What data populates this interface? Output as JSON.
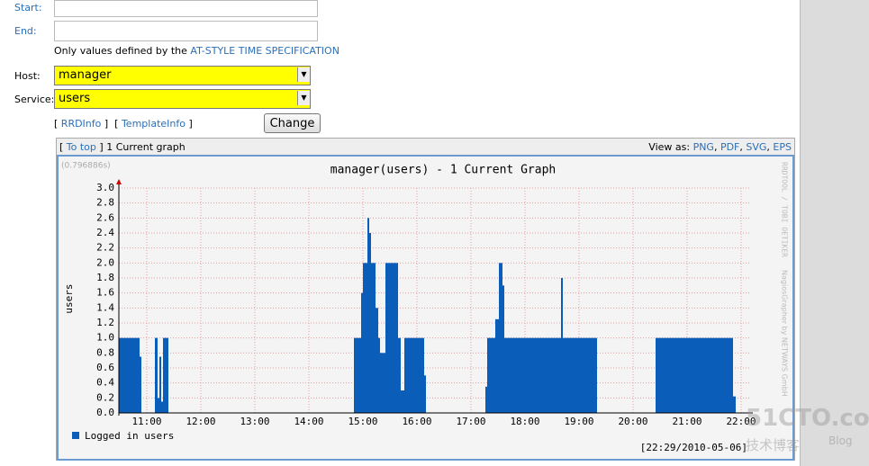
{
  "form": {
    "start_label": "Start:",
    "end_label": "End:",
    "hint": "Only values defined by the",
    "hint_link": "AT-STYLE TIME SPECIFICATION",
    "host_label": "Host:",
    "host_value": "manager",
    "service_label": "Service:",
    "service_value": "users",
    "links": [
      "RRDInfo",
      "TemplateInfo"
    ],
    "button": "Change"
  },
  "panel": {
    "to_top": "To top",
    "caption": "1 Current graph",
    "view_as": "View as:",
    "formats": [
      "PNG",
      "PDF",
      "SVG",
      "EPS"
    ]
  },
  "graph": {
    "type": "step-area",
    "timing": "(0.796886s)",
    "title": "manager(users) - 1 Current Graph",
    "y_label": "users",
    "credits": [
      "RRDTOOL / TOBI OETIKER",
      "NagiosGrapher by NETWAYS GmbH"
    ],
    "series": [
      {
        "name": "Logged in users",
        "color": "#0a5db8",
        "x": [
          629,
          652,
          654,
          669,
          672,
          674,
          676,
          678,
          684,
          890,
          898,
          900,
          905,
          907,
          909,
          914,
          917,
          919,
          925,
          939,
          942,
          946,
          968,
          970,
          1036,
          1038,
          1047,
          1051,
          1055,
          1057,
          1120,
          1122,
          1160,
          1225,
          1311,
          1314
        ],
        "values": [
          1.0,
          0.75,
          0,
          1.0,
          0.2,
          0.75,
          0.15,
          1.0,
          0,
          1.0,
          1.6,
          2.0,
          2.6,
          2.4,
          2.0,
          1.4,
          1.0,
          0.8,
          2.0,
          1.0,
          0.3,
          1.0,
          0.5,
          0,
          0.35,
          1.0,
          1.25,
          2.0,
          1.7,
          1.0,
          1.8,
          1.0,
          0,
          1.0,
          0.22,
          0
        ]
      }
    ],
    "xlim": [
      629,
      1329
    ],
    "xticks": [
      {
        "value": 660,
        "label": "11:00"
      },
      {
        "value": 720,
        "label": "12:00"
      },
      {
        "value": 780,
        "label": "13:00"
      },
      {
        "value": 840,
        "label": "14:00"
      },
      {
        "value": 900,
        "label": "15:00"
      },
      {
        "value": 960,
        "label": "16:00"
      },
      {
        "value": 1020,
        "label": "17:00"
      },
      {
        "value": 1080,
        "label": "18:00"
      },
      {
        "value": 1140,
        "label": "19:00"
      },
      {
        "value": 1200,
        "label": "20:00"
      },
      {
        "value": 1260,
        "label": "21:00"
      },
      {
        "value": 1320,
        "label": "22:00"
      }
    ],
    "ylim": [
      0,
      3.0
    ],
    "yticks": [
      {
        "value": 0,
        "label": "0.0"
      },
      {
        "value": 0.2,
        "label": "0.2"
      },
      {
        "value": 0.4,
        "label": "0.4"
      },
      {
        "value": 0.6,
        "label": "0.6"
      },
      {
        "value": 0.8,
        "label": "0.8"
      },
      {
        "value": 1.0,
        "label": "1.0"
      },
      {
        "value": 1.2,
        "label": "1.2"
      },
      {
        "value": 1.4,
        "label": "1.4"
      },
      {
        "value": 1.6,
        "label": "1.6"
      },
      {
        "value": 1.8,
        "label": "1.8"
      },
      {
        "value": 2.0,
        "label": "2.0"
      },
      {
        "value": 2.2,
        "label": "2.2"
      },
      {
        "value": 2.4,
        "label": "2.4"
      },
      {
        "value": 2.6,
        "label": "2.6"
      },
      {
        "value": 2.8,
        "label": "2.8"
      },
      {
        "value": 3.0,
        "label": "3.0"
      }
    ],
    "grid": true,
    "timestamp": "[22:29/2010-05-06]"
  },
  "watermark": {
    "site": "51CTO.com",
    "sub": "技术博客",
    "blog": "Blog"
  }
}
